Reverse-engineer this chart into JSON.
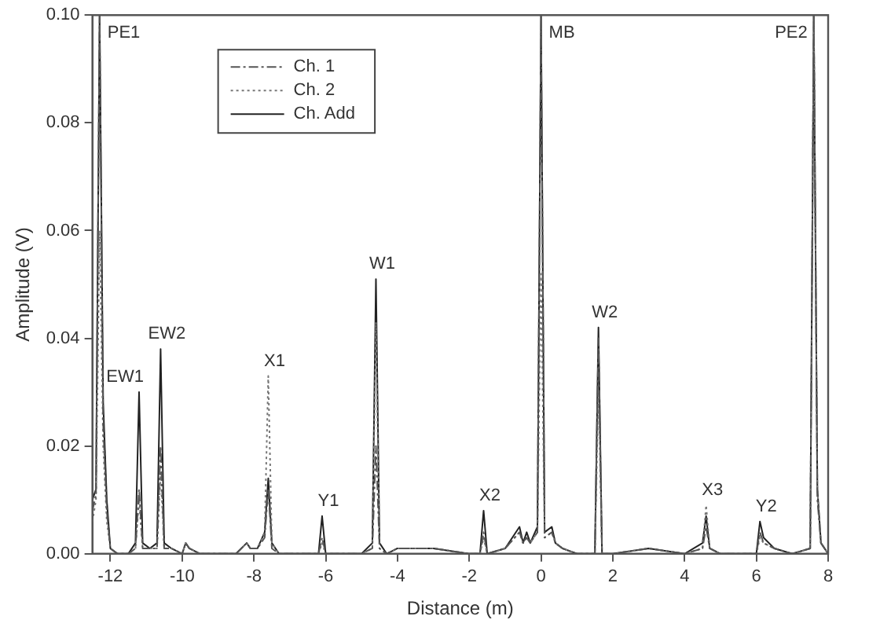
{
  "chart_data": {
    "type": "line",
    "xlabel": "Distance (m)",
    "ylabel": "Amplitude (V)",
    "x": [
      -12.5,
      -12.4,
      -12.3,
      -12.2,
      -12.1,
      -12.0,
      -11.8,
      -11.5,
      -11.3,
      -11.2,
      -11.1,
      -10.9,
      -10.7,
      -10.6,
      -10.5,
      -10.3,
      -10.0,
      -9.9,
      -9.8,
      -9.5,
      -9.0,
      -8.5,
      -8.2,
      -8.1,
      -7.9,
      -7.7,
      -7.6,
      -7.5,
      -7.3,
      -7.0,
      -6.5,
      -6.2,
      -6.1,
      -6.0,
      -5.5,
      -5.0,
      -4.7,
      -4.6,
      -4.5,
      -4.3,
      -4.0,
      -3.0,
      -2.0,
      -1.7,
      -1.6,
      -1.5,
      -1.0,
      -0.6,
      -0.5,
      -0.4,
      -0.3,
      -0.1,
      0.0,
      0.1,
      0.3,
      0.4,
      0.6,
      1.0,
      1.5,
      1.6,
      1.7,
      2.0,
      3.0,
      4.0,
      4.5,
      4.6,
      4.7,
      5.0,
      6.0,
      6.1,
      6.2,
      6.5,
      7.0,
      7.5,
      7.6,
      7.7,
      7.8,
      8.0
    ],
    "series": [
      {
        "name": "Ch. 1",
        "color": "#555555",
        "line_style": "dashed",
        "values": [
          0.008,
          0.011,
          0.1,
          0.024,
          0.008,
          0.001,
          0.0,
          0.0,
          0.001,
          0.012,
          0.001,
          0.001,
          0.001,
          0.02,
          0.001,
          0.001,
          0.0,
          0.002,
          0.001,
          0.0,
          0.0,
          0.0,
          0.002,
          0.001,
          0.001,
          0.003,
          0.012,
          0.001,
          0.0,
          0.0,
          0.0,
          0.0,
          0.003,
          0.0,
          0.0,
          0.0,
          0.001,
          0.02,
          0.001,
          0.0,
          0.001,
          0.001,
          0.0,
          0.0,
          0.004,
          0.0,
          0.001,
          0.004,
          0.002,
          0.003,
          0.002,
          0.004,
          0.1,
          0.003,
          0.004,
          0.002,
          0.001,
          0.0,
          0.0,
          0.04,
          0.0,
          0.0,
          0.001,
          0.0,
          0.001,
          0.005,
          0.001,
          0.0,
          0.0,
          0.004,
          0.002,
          0.001,
          0.0,
          0.001,
          0.1,
          0.01,
          0.002,
          0.0
        ]
      },
      {
        "name": "Ch. 2",
        "color": "#777777",
        "line_style": "dotted",
        "values": [
          0.006,
          0.01,
          0.06,
          0.02,
          0.006,
          0.001,
          0.0,
          0.0,
          0.001,
          0.01,
          0.001,
          0.001,
          0.001,
          0.015,
          0.001,
          0.001,
          0.0,
          0.002,
          0.001,
          0.0,
          0.0,
          0.0,
          0.002,
          0.001,
          0.001,
          0.004,
          0.033,
          0.002,
          0.0,
          0.0,
          0.0,
          0.0,
          0.002,
          0.0,
          0.0,
          0.0,
          0.001,
          0.043,
          0.001,
          0.0,
          0.001,
          0.001,
          0.0,
          0.0,
          0.003,
          0.0,
          0.001,
          0.004,
          0.002,
          0.003,
          0.002,
          0.004,
          0.052,
          0.003,
          0.004,
          0.002,
          0.001,
          0.0,
          0.0,
          0.03,
          0.0,
          0.0,
          0.001,
          0.0,
          0.001,
          0.009,
          0.001,
          0.0,
          0.0,
          0.003,
          0.002,
          0.001,
          0.0,
          0.001,
          0.1,
          0.012,
          0.002,
          0.0
        ]
      },
      {
        "name": "Ch. Add",
        "color": "#222222",
        "line_style": "solid",
        "values": [
          0.01,
          0.012,
          0.1,
          0.028,
          0.01,
          0.001,
          0.0,
          0.0,
          0.002,
          0.03,
          0.002,
          0.001,
          0.002,
          0.038,
          0.002,
          0.001,
          0.0,
          0.002,
          0.001,
          0.0,
          0.0,
          0.0,
          0.002,
          0.001,
          0.001,
          0.004,
          0.014,
          0.002,
          0.0,
          0.0,
          0.0,
          0.0,
          0.007,
          0.0,
          0.0,
          0.0,
          0.002,
          0.051,
          0.002,
          0.0,
          0.001,
          0.001,
          0.0,
          0.0,
          0.008,
          0.0,
          0.001,
          0.005,
          0.002,
          0.004,
          0.002,
          0.005,
          0.1,
          0.004,
          0.005,
          0.002,
          0.001,
          0.0,
          0.0,
          0.042,
          0.0,
          0.0,
          0.001,
          0.0,
          0.002,
          0.007,
          0.001,
          0.0,
          0.0,
          0.006,
          0.003,
          0.001,
          0.0,
          0.001,
          0.1,
          0.012,
          0.002,
          0.0
        ]
      }
    ],
    "xlim": [
      -12.5,
      8
    ],
    "xticks": [
      -12,
      -10,
      -8,
      -6,
      -4,
      -2,
      0,
      2,
      4,
      6,
      8
    ],
    "ylim": [
      0,
      0.1
    ],
    "yticks": [
      {
        "value": 0,
        "label": "0.00"
      },
      {
        "value": 0.02,
        "label": "0.02"
      },
      {
        "value": 0.04,
        "label": "0.04"
      },
      {
        "value": 0.06,
        "label": "0.06"
      },
      {
        "value": 0.08,
        "label": "0.08"
      },
      {
        "value": 0.1,
        "label": "0.10"
      }
    ],
    "grid": false,
    "legend": "top left",
    "marker": "none",
    "annotations": [
      {
        "text": "PE1",
        "x": -12.3,
        "y": 0.1
      },
      {
        "text": "EW1",
        "x": -11.2,
        "y": 0.03
      },
      {
        "text": "EW2",
        "x": -10.6,
        "y": 0.038
      },
      {
        "text": "X1",
        "x": -7.6,
        "y": 0.033
      },
      {
        "text": "Y1",
        "x": -6.1,
        "y": 0.007
      },
      {
        "text": "W1",
        "x": -4.6,
        "y": 0.051
      },
      {
        "text": "X2",
        "x": -1.6,
        "y": 0.008
      },
      {
        "text": "MB",
        "x": 0,
        "y": 0.1
      },
      {
        "text": "W2",
        "x": 1.6,
        "y": 0.042
      },
      {
        "text": "X3",
        "x": 4.6,
        "y": 0.009
      },
      {
        "text": "Y2",
        "x": 6.1,
        "y": 0.006
      },
      {
        "text": "PE2",
        "x": 7.6,
        "y": 0.1
      }
    ]
  }
}
